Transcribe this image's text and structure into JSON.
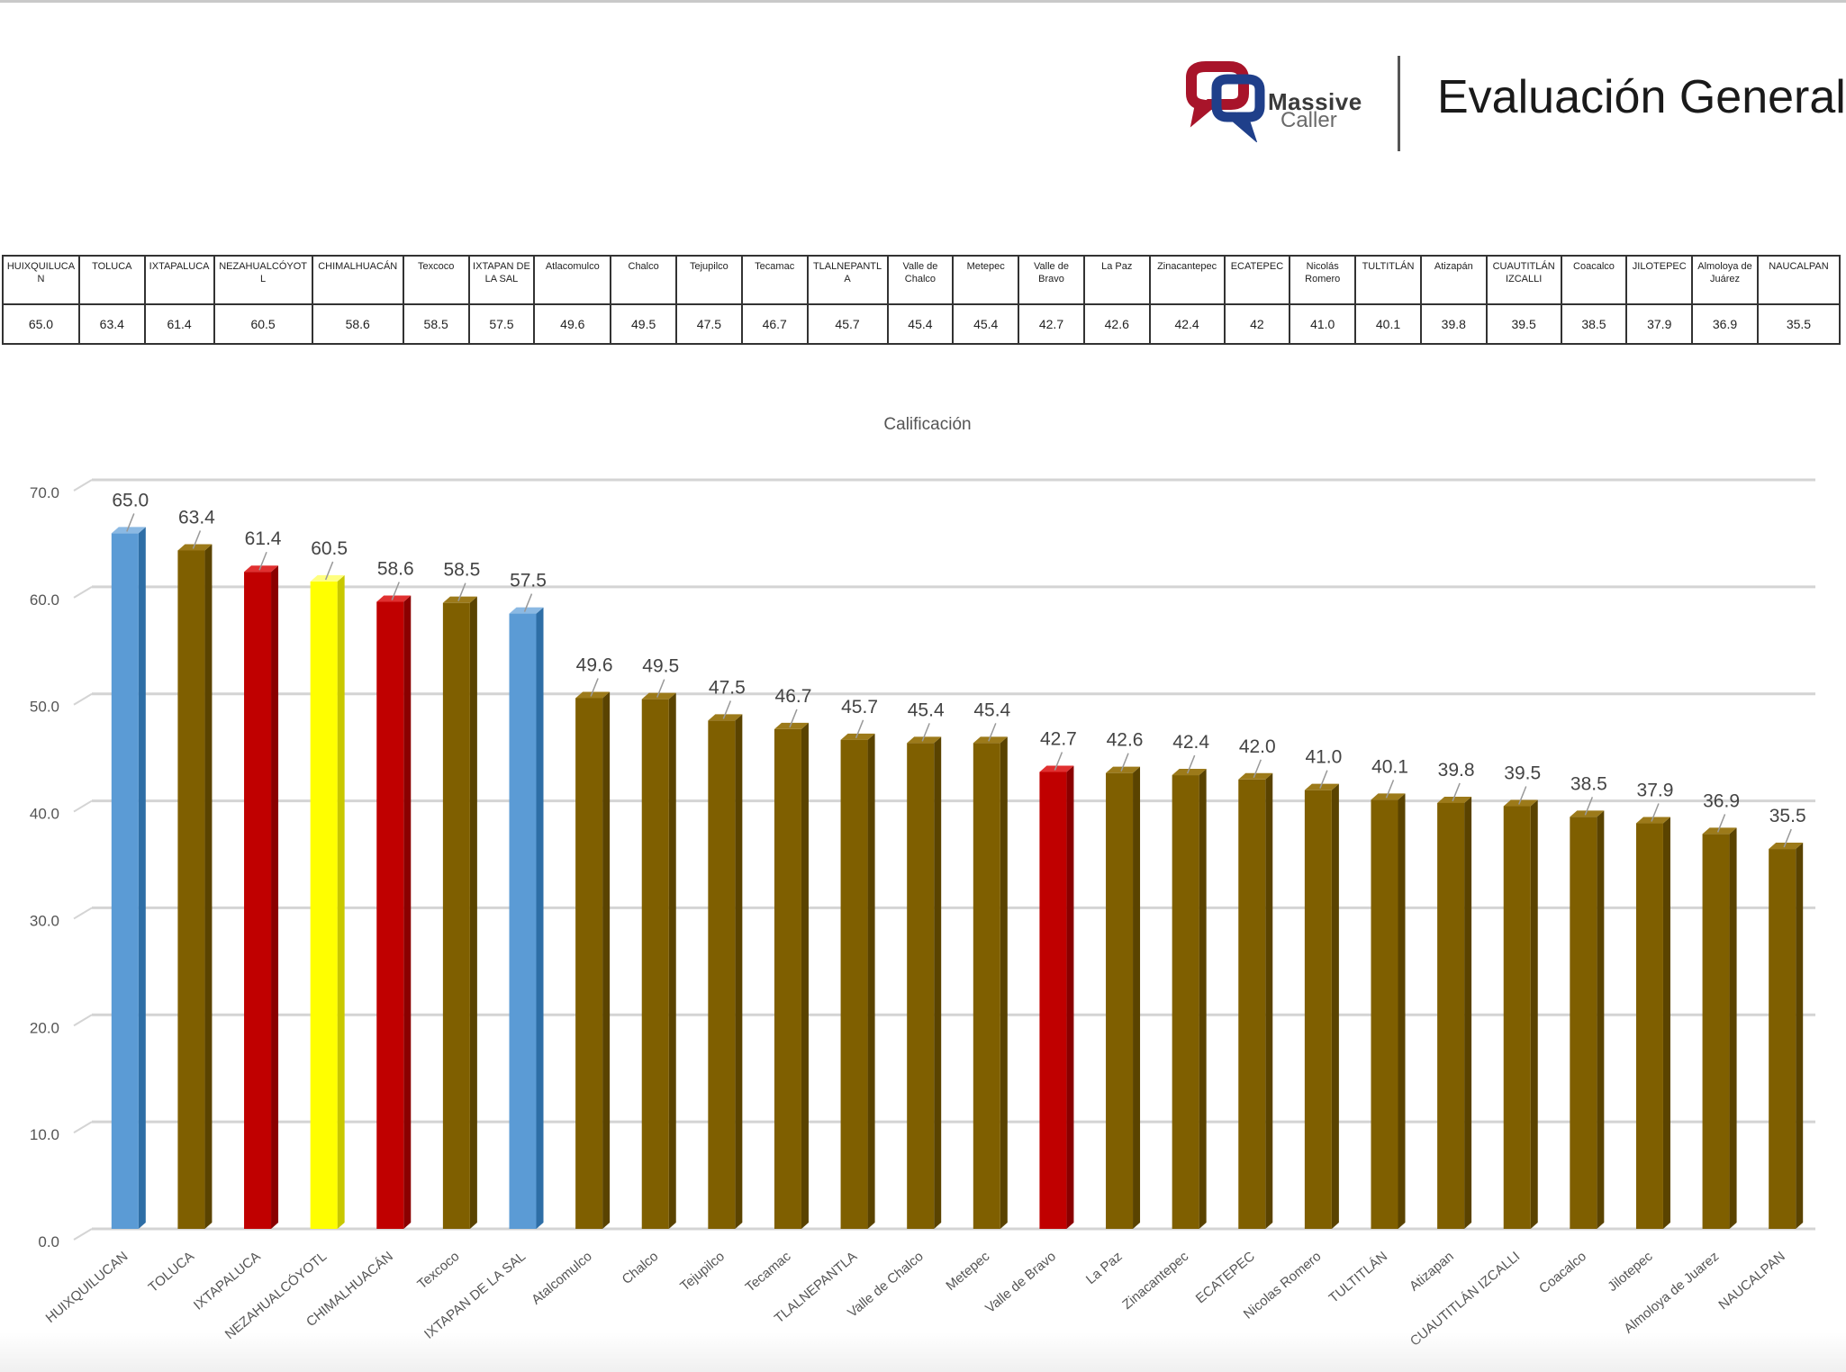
{
  "header": {
    "brand_line1": "Massive",
    "brand_line2": "Caller",
    "title": "Evaluación General"
  },
  "table": {
    "headers": [
      "HUIXQUILUCAN",
      "TOLUCA",
      "IXTAPALUCA",
      "NEZAHUALCÓYOTL",
      "CHIMALHUACÁN",
      "Texcoco",
      "IXTAPAN DE LA SAL",
      "Atlacomulco",
      "Chalco",
      "Tejupilco",
      "Tecamac",
      "TLALNEPANTLA",
      "Valle de Chalco",
      "Metepec",
      "Valle de Bravo",
      "La Paz",
      "Zinacantepec",
      "ECATEPEC",
      "Nicolás Romero",
      "TULTITLÁN",
      "Atizapán",
      "CUAUTITLÁN IZCALLI",
      "Coacalco",
      "JILOTEPEC",
      "Almoloya de Juárez",
      "NAUCALPAN"
    ],
    "values": [
      "65.0",
      "63.4",
      "61.4",
      "60.5",
      "58.6",
      "58.5",
      "57.5",
      "49.6",
      "49.5",
      "47.5",
      "46.7",
      "45.7",
      "45.4",
      "45.4",
      "42.7",
      "42.6",
      "42.4",
      "42",
      "41.0",
      "40.1",
      "39.8",
      "39.5",
      "38.5",
      "37.9",
      "36.9",
      "35.5"
    ]
  },
  "colors": {
    "blue": "#5b9bd5",
    "brown": "#7f5f00",
    "red": "#c00000",
    "yellow": "#ffff00"
  },
  "chart_data": {
    "type": "bar",
    "title": "Calificación",
    "xlabel": "",
    "ylabel": "",
    "ylim": [
      0,
      70
    ],
    "yticks": [
      "0.0",
      "10.0",
      "20.0",
      "30.0",
      "40.0",
      "50.0",
      "60.0",
      "70.0"
    ],
    "categories": [
      "HUIXQUILUCAN",
      "TOLUCA",
      "IXTAPALUCA",
      "NEZAHUALCÓYOTL",
      "CHIMALHUACÁN",
      "Texcoco",
      "IXTAPAN DE LA SAL",
      "Atalcomulco",
      "Chalco",
      "Tejupilco",
      "Tecamac",
      "TLALNEPANTLA",
      "Valle de Chalco",
      "Metepec",
      "Valle de Bravo",
      "La Paz",
      "Zinacantepec",
      "ECATEPEC",
      "Nicolas Romero",
      "TULTITLÁN",
      "Atizapan",
      "CUAUTITLÁN IZCALLI",
      "Coacalco",
      "Jilotepec",
      "Almoloya de Juarez",
      "NAUCALPAN"
    ],
    "values": [
      65.0,
      63.4,
      61.4,
      60.5,
      58.6,
      58.5,
      57.5,
      49.6,
      49.5,
      47.5,
      46.7,
      45.7,
      45.4,
      45.4,
      42.7,
      42.6,
      42.4,
      42.0,
      41.0,
      40.1,
      39.8,
      39.5,
      38.5,
      37.9,
      36.9,
      35.5
    ],
    "labels": [
      "65.0",
      "63.4",
      "61.4",
      "60.5",
      "58.6",
      "58.5",
      "57.5",
      "49.6",
      "49.5",
      "47.5",
      "46.7",
      "45.7",
      "45.4",
      "45.4",
      "42.7",
      "42.6",
      "42.4",
      "42.0",
      "41.0",
      "40.1",
      "39.8",
      "39.5",
      "38.5",
      "37.9",
      "36.9",
      "35.5"
    ],
    "bar_colors": [
      "blue",
      "brown",
      "red",
      "yellow",
      "red",
      "brown",
      "blue",
      "brown",
      "brown",
      "brown",
      "brown",
      "brown",
      "brown",
      "brown",
      "red",
      "brown",
      "brown",
      "brown",
      "brown",
      "brown",
      "brown",
      "brown",
      "brown",
      "brown",
      "brown",
      "brown"
    ],
    "grid": true
  }
}
